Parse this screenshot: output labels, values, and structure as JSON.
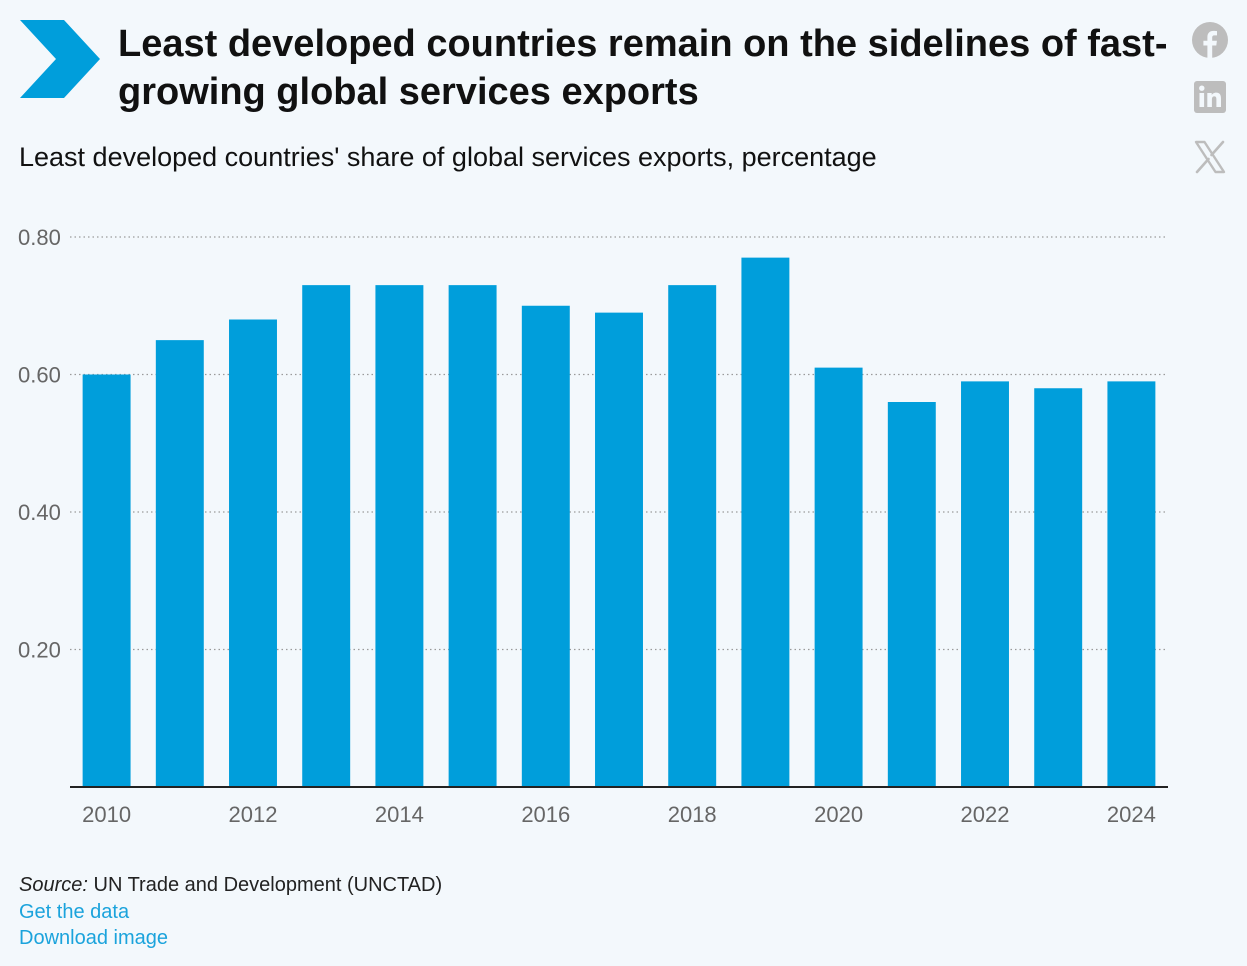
{
  "header": {
    "title": "Least developed countries remain on the sidelines of fast-growing global services exports",
    "subtitle": "Least developed countries' share of global services exports, percentage"
  },
  "share": {
    "icons": [
      "facebook-icon",
      "linkedin-icon",
      "x-icon"
    ]
  },
  "colors": {
    "bar": "#009edb",
    "logo": "#009edb",
    "link": "#1ba3dc",
    "share_icon": "#bdbdbd",
    "background": "#f3f8fc",
    "axis_text": "#666666",
    "grid": "#9a9a9a"
  },
  "chart_data": {
    "type": "bar",
    "title": "Least developed countries' share of global services exports, percentage",
    "xlabel": "",
    "ylabel": "",
    "categories": [
      "2010",
      "2011",
      "2012",
      "2013",
      "2014",
      "2015",
      "2016",
      "2017",
      "2018",
      "2019",
      "2020",
      "2021",
      "2022",
      "2023",
      "2024"
    ],
    "values": [
      0.6,
      0.65,
      0.68,
      0.73,
      0.73,
      0.73,
      0.7,
      0.69,
      0.73,
      0.77,
      0.61,
      0.56,
      0.59,
      0.58,
      0.59
    ],
    "x_tick_labels": [
      "2010",
      "2012",
      "2014",
      "2016",
      "2018",
      "2020",
      "2022",
      "2024"
    ],
    "y_ticks": [
      0.2,
      0.4,
      0.6,
      0.8
    ],
    "y_tick_labels": [
      "0.20",
      "0.40",
      "0.60",
      "0.80"
    ],
    "ylim": [
      0,
      0.8
    ],
    "grid": "horizontal dotted",
    "legend": "none"
  },
  "footer": {
    "source_prefix": "Source:",
    "source_text": " UN Trade and Development (UNCTAD)",
    "get_data_label": "Get the data",
    "download_label": "Download image"
  }
}
